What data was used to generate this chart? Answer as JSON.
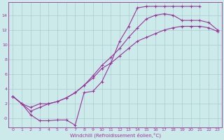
{
  "bg_color": "#cceaea",
  "grid_color": "#aacccc",
  "line_color": "#993399",
  "series": [
    {
      "x": [
        0,
        1,
        2,
        3,
        4,
        5,
        6,
        7,
        8,
        9,
        10,
        11,
        12,
        13,
        14,
        15,
        16,
        17,
        18,
        19,
        20,
        21
      ],
      "y": [
        3,
        2,
        0.5,
        -0.3,
        -0.3,
        -0.2,
        -0.2,
        -0.9,
        3.5,
        3.7,
        5.0,
        7.5,
        10.5,
        12.5,
        15.0,
        15.2,
        15.2,
        15.2,
        15.2,
        15.2,
        15.2,
        15.2
      ]
    },
    {
      "x": [
        0,
        1,
        2,
        3,
        4,
        5,
        6,
        7,
        8,
        9,
        10,
        11,
        12,
        13,
        14,
        15,
        16,
        17,
        18,
        19,
        20,
        21,
        22,
        23
      ],
      "y": [
        3,
        2,
        1.5,
        2.0,
        2.0,
        2.3,
        2.8,
        3.5,
        4.5,
        5.8,
        7.2,
        8.3,
        9.5,
        11.0,
        12.3,
        13.5,
        14.0,
        14.2,
        14.0,
        13.3,
        13.3,
        13.3,
        13.0,
        12.0
      ]
    },
    {
      "x": [
        0,
        1,
        2,
        3,
        4,
        5,
        6,
        7,
        8,
        9,
        10,
        11,
        12,
        13,
        14,
        15,
        16,
        17,
        18,
        19,
        20,
        21,
        22,
        23
      ],
      "y": [
        3,
        2,
        1.0,
        1.5,
        2.0,
        2.3,
        2.8,
        3.5,
        4.5,
        5.5,
        6.8,
        7.5,
        8.5,
        9.5,
        10.5,
        11.0,
        11.5,
        12.0,
        12.3,
        12.5,
        12.5,
        12.5,
        12.3,
        11.8
      ]
    }
  ],
  "xlabel": "Windchill (Refroidissement éolien,°C)",
  "xlim": [
    -0.5,
    23.5
  ],
  "ylim": [
    -1.2,
    15.8
  ],
  "xticks": [
    0,
    1,
    2,
    3,
    4,
    5,
    6,
    7,
    8,
    9,
    10,
    11,
    12,
    13,
    14,
    15,
    16,
    17,
    18,
    19,
    20,
    21,
    22,
    23
  ],
  "yticks": [
    0,
    2,
    4,
    6,
    8,
    10,
    12,
    14
  ],
  "ytick_labels": [
    "-0",
    "2",
    "4",
    "6",
    "8",
    "10",
    "12",
    "14"
  ],
  "tick_fontsize": 4.5,
  "xlabel_fontsize": 5.0
}
